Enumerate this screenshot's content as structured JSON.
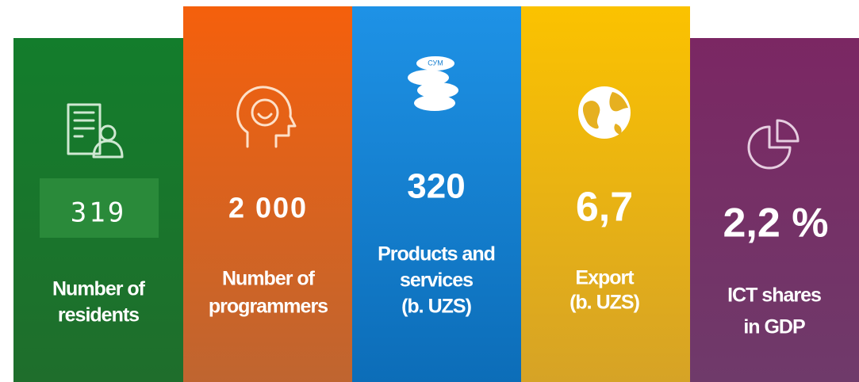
{
  "panels": [
    {
      "value": "319",
      "label": [
        "Number of",
        "residents"
      ]
    },
    {
      "value": "2 000",
      "label": [
        "Number of",
        "programmers"
      ]
    },
    {
      "value": "320",
      "label": [
        "Products and",
        "services",
        "(b. UZS)"
      ]
    },
    {
      "value": "6,7",
      "label": [
        "Export",
        "(b. UZS)"
      ]
    },
    {
      "value": "2,2 %",
      "label": [
        "ICT shares",
        "in GDP"
      ]
    }
  ]
}
